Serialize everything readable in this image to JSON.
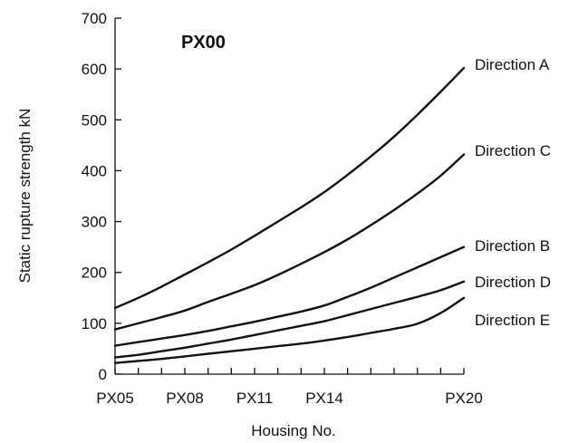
{
  "chart_data": {
    "type": "line",
    "title": "PX00",
    "xlabel": "Housing No.",
    "ylabel": "Static rupture strength  kN",
    "ylim": [
      0,
      700
    ],
    "yticks": [
      0,
      100,
      200,
      300,
      400,
      500,
      600,
      700
    ],
    "xlim": [
      5,
      20
    ],
    "xtick_labels": [
      {
        "x": 5,
        "label": "PX05"
      },
      {
        "x": 8,
        "label": "PX08"
      },
      {
        "x": 11,
        "label": "PX11"
      },
      {
        "x": 14,
        "label": "PX14"
      },
      {
        "x": 20,
        "label": "PX20"
      }
    ],
    "x": [
      5,
      6,
      7,
      8,
      9,
      10,
      11,
      12,
      13,
      14,
      15,
      16,
      17,
      18,
      19,
      20
    ],
    "series": [
      {
        "name": "Direction A",
        "values": [
          130,
          150,
          172,
          196,
          220,
          245,
          272,
          300,
          328,
          358,
          392,
          428,
          467,
          510,
          555,
          602
        ]
      },
      {
        "name": "Direction C",
        "values": [
          88,
          100,
          112,
          125,
          142,
          158,
          175,
          195,
          217,
          240,
          265,
          293,
          323,
          355,
          390,
          432
        ]
      },
      {
        "name": "Direction B",
        "values": [
          56,
          63,
          70,
          77,
          85,
          94,
          103,
          113,
          123,
          135,
          152,
          170,
          190,
          210,
          230,
          250
        ]
      },
      {
        "name": "Direction D",
        "values": [
          33,
          38,
          45,
          52,
          60,
          68,
          77,
          86,
          95,
          104,
          116,
          128,
          140,
          152,
          165,
          182
        ]
      },
      {
        "name": "Direction E",
        "values": [
          22,
          26,
          30,
          35,
          40,
          45,
          50,
          55,
          60,
          66,
          73,
          81,
          89,
          99,
          120,
          150
        ]
      }
    ],
    "grid": false
  }
}
